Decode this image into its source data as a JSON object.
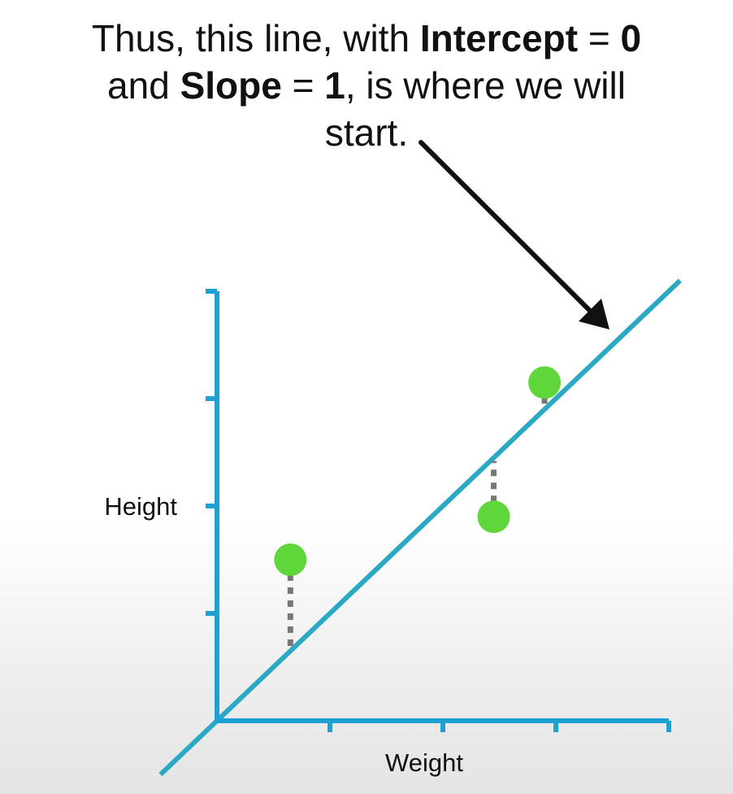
{
  "caption": {
    "line1_prefix": "Thus, this line, with ",
    "line1_bold_a": "Intercept",
    "line1_mid": " = ",
    "line1_bold_b": "0",
    "line2_prefix": "and ",
    "line2_bold_a": "Slope",
    "line2_mid": " = ",
    "line2_bold_b": "1",
    "line2_suffix": ", is where we will",
    "line3": "start."
  },
  "colors": {
    "axis": "#1da1d2",
    "fit_line": "#2aa8c4",
    "points": "#5fd63a",
    "residual": "#777777",
    "arrow": "#111111"
  },
  "chart_data": {
    "type": "scatter",
    "xlabel": "Weight",
    "ylabel": "Height",
    "xlim": [
      0,
      4
    ],
    "ylim": [
      0,
      4
    ],
    "x_ticks": [
      1,
      2,
      3,
      4
    ],
    "y_ticks": [
      1,
      2,
      3,
      4
    ],
    "grid": false,
    "points": [
      {
        "x": 0.65,
        "y": 1.5
      },
      {
        "x": 2.45,
        "y": 1.9
      },
      {
        "x": 2.9,
        "y": 3.15
      }
    ],
    "line": {
      "intercept": 0,
      "slope": 1,
      "x_range": [
        -0.5,
        4.1
      ]
    },
    "residuals": true
  }
}
